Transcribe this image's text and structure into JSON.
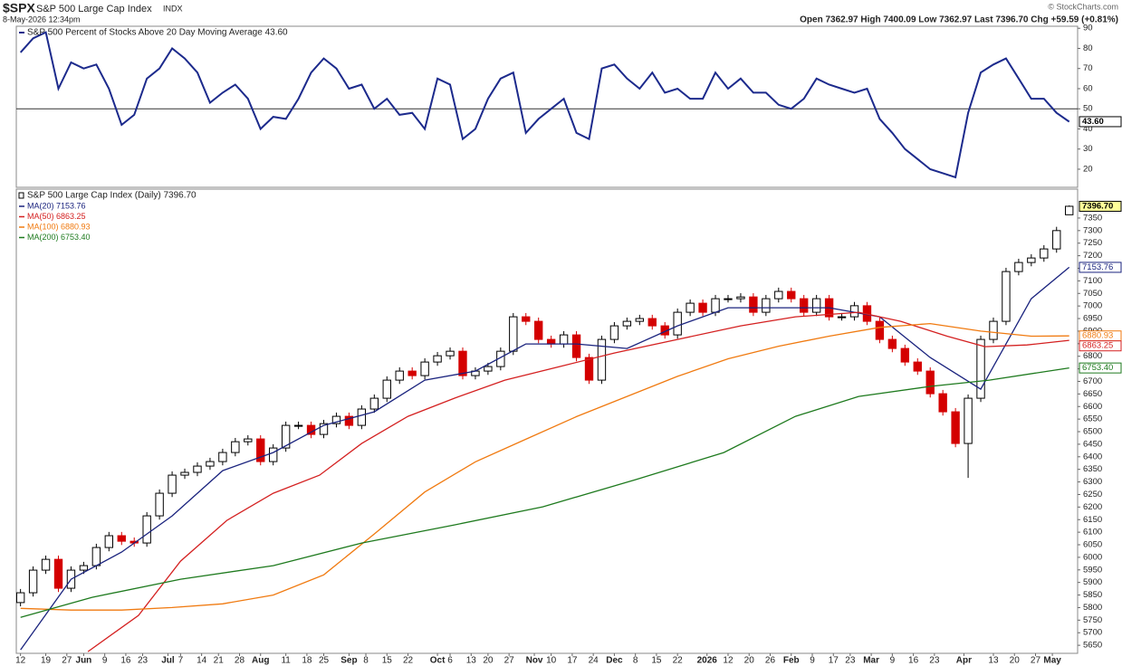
{
  "header": {
    "symbol": "$SPX",
    "name": "S&P 500 Large Cap Index",
    "exchange": "INDX",
    "timestamp": "8-May-2026 12:34pm",
    "quote": "Open 7362.97  High 7400.09  Low 7362.97  Last 7396.70  Chg +59.59 (+0.81%)",
    "credit": "© StockCharts.com"
  },
  "chart_data": [
    {
      "type": "line",
      "x": [
        0,
        3,
        6,
        9,
        12,
        15,
        18,
        21,
        24,
        27,
        30,
        33,
        36,
        39,
        42,
        45,
        48,
        51,
        54,
        57,
        60,
        63,
        66,
        69,
        72,
        75,
        78,
        81,
        84,
        87,
        90,
        93,
        96,
        99,
        102,
        105,
        108,
        111,
        114,
        117,
        120,
        123,
        126,
        129,
        132,
        135,
        138,
        141,
        144,
        147,
        150,
        153,
        156,
        159,
        162,
        165,
        168,
        171,
        174,
        177,
        180,
        183,
        186,
        189,
        192,
        195,
        198,
        201,
        204,
        207,
        210,
        213,
        216,
        219,
        222,
        225,
        228,
        231,
        234,
        237,
        240,
        243,
        246,
        249
      ],
      "series": [
        {
          "name": "S&P 500 Percent of Stocks Above 20 Day Moving Average 43.60",
          "color": "#1c2a8c",
          "last_label": "43.60",
          "values": [
            78,
            85,
            88,
            60,
            73,
            70,
            72,
            60,
            42,
            47,
            65,
            70,
            80,
            75,
            68,
            53,
            58,
            62,
            55,
            40,
            46,
            45,
            55,
            68,
            75,
            70,
            60,
            62,
            50,
            55,
            47,
            48,
            40,
            65,
            62,
            35,
            40,
            55,
            65,
            68,
            38,
            45,
            50,
            55,
            38,
            35,
            70,
            72,
            65,
            60,
            68,
            58,
            60,
            55,
            55,
            68,
            60,
            65,
            58,
            58,
            52,
            50,
            55,
            65,
            62,
            60,
            58,
            60,
            45,
            38,
            30,
            25,
            20,
            18,
            16,
            48,
            68,
            72,
            75,
            65,
            55,
            55,
            48,
            43.6
          ]
        }
      ],
      "xlim": [
        -1,
        251
      ],
      "ylim": [
        11,
        91
      ],
      "yticks": [
        20,
        30,
        40,
        50,
        60,
        70,
        80,
        90
      ],
      "hline": 50
    },
    {
      "type": "candlestick",
      "name": "S&P 500 Large Cap Index (Daily) 7396.70",
      "last_label": "7396.70",
      "up_color": "#000000",
      "down_color": "#d40000",
      "x": [
        0,
        3,
        6,
        9,
        12,
        15,
        18,
        21,
        24,
        27,
        30,
        33,
        36,
        39,
        42,
        45,
        48,
        51,
        54,
        57,
        60,
        63,
        66,
        69,
        72,
        75,
        78,
        81,
        84,
        87,
        90,
        93,
        96,
        99,
        102,
        105,
        108,
        111,
        114,
        117,
        120,
        123,
        126,
        129,
        132,
        135,
        138,
        141,
        144,
        147,
        150,
        153,
        156,
        159,
        162,
        165,
        168,
        171,
        174,
        177,
        180,
        183,
        186,
        189,
        192,
        195,
        198,
        201,
        204,
        207,
        210,
        213,
        216,
        219,
        222,
        225,
        228,
        231,
        234,
        237,
        240,
        243,
        246,
        249
      ],
      "open": [
        5820,
        5859,
        5949,
        5992,
        5877,
        5949,
        5967,
        6039,
        6086,
        6064,
        6057,
        6165,
        6255,
        6327,
        6338,
        6363,
        6381,
        6417,
        6460,
        6471,
        6381,
        6435,
        6525,
        6525,
        6489,
        6532,
        6561,
        6525,
        6590,
        6633,
        6705,
        6741,
        6723,
        6777,
        6802,
        6820,
        6723,
        6741,
        6759,
        6820,
        6957,
        6939,
        6867,
        6849,
        6885,
        6795,
        6705,
        6867,
        6921,
        6939,
        6950,
        6921,
        6885,
        6975,
        7011,
        6975,
        7029,
        7029,
        7036,
        6975,
        7029,
        7058,
        7029,
        6975,
        7029,
        6957,
        6957,
        7001,
        6939,
        6867,
        6831,
        6777,
        6741,
        6651,
        6579,
        6453,
        6633,
        6867,
        6939,
        7137,
        7173,
        7191,
        7227,
        7362.97
      ],
      "high": [
        5874,
        5964,
        6007,
        6007,
        5964,
        5982,
        6054,
        6101,
        6101,
        6079,
        6180,
        6270,
        6342,
        6353,
        6378,
        6396,
        6432,
        6475,
        6486,
        6486,
        6450,
        6540,
        6540,
        6540,
        6547,
        6576,
        6576,
        6605,
        6648,
        6720,
        6756,
        6756,
        6792,
        6817,
        6835,
        6835,
        6756,
        6774,
        6835,
        6972,
        6972,
        6954,
        6882,
        6900,
        6900,
        6810,
        6882,
        6936,
        6954,
        6965,
        6965,
        6936,
        6990,
        7026,
        7026,
        7044,
        7044,
        7051,
        7051,
        7044,
        7073,
        7073,
        7044,
        7044,
        7044,
        6972,
        7016,
        7016,
        6954,
        6882,
        6846,
        6792,
        6756,
        6666,
        6594,
        6648,
        6882,
        6954,
        7152,
        7188,
        7206,
        7242,
        7315,
        7400.09
      ],
      "low": [
        5805,
        5844,
        5934,
        5862,
        5862,
        5934,
        5952,
        6024,
        6049,
        6042,
        6042,
        6150,
        6240,
        6312,
        6323,
        6348,
        6366,
        6402,
        6445,
        6366,
        6366,
        6420,
        6510,
        6474,
        6474,
        6517,
        6510,
        6510,
        6575,
        6618,
        6690,
        6708,
        6708,
        6762,
        6787,
        6708,
        6708,
        6726,
        6744,
        6805,
        6924,
        6852,
        6834,
        6834,
        6780,
        6690,
        6690,
        6852,
        6906,
        6924,
        6906,
        6870,
        6870,
        6960,
        6960,
        6960,
        7014,
        7014,
        6960,
        6960,
        7014,
        7014,
        6960,
        6960,
        6942,
        6942,
        6942,
        6924,
        6852,
        6816,
        6762,
        6726,
        6636,
        6564,
        6438,
        6316,
        6618,
        6852,
        6924,
        7122,
        7158,
        7176,
        7212,
        7362.97
      ],
      "close": [
        5859,
        5949,
        5992,
        5877,
        5949,
        5967,
        6039,
        6086,
        6064,
        6057,
        6165,
        6255,
        6327,
        6338,
        6363,
        6381,
        6417,
        6460,
        6471,
        6381,
        6435,
        6525,
        6525,
        6489,
        6532,
        6561,
        6525,
        6590,
        6633,
        6705,
        6741,
        6723,
        6777,
        6802,
        6820,
        6723,
        6741,
        6759,
        6820,
        6957,
        6939,
        6867,
        6849,
        6885,
        6795,
        6705,
        6867,
        6921,
        6939,
        6950,
        6921,
        6885,
        6975,
        7011,
        6975,
        7029,
        7029,
        7036,
        6975,
        7029,
        7058,
        7029,
        6975,
        7029,
        6957,
        6957,
        7001,
        6939,
        6867,
        6831,
        6777,
        6741,
        6651,
        6579,
        6453,
        6633,
        6867,
        6939,
        7137,
        7173,
        7191,
        7227,
        7300,
        7396.7
      ],
      "overlays": [
        {
          "name": "MA(20) 7153.76",
          "color": "#1a237e",
          "last_label": "7153.76",
          "x": [
            0,
            12,
            24,
            36,
            48,
            60,
            72,
            84,
            96,
            108,
            120,
            132,
            144,
            156,
            168,
            180,
            192,
            204,
            216,
            228,
            240,
            249
          ],
          "values": [
            5632,
            5913,
            6021,
            6165,
            6345,
            6417,
            6525,
            6579,
            6705,
            6741,
            6849,
            6849,
            6831,
            6921,
            6993,
            6993,
            6993,
            6957,
            6795,
            6669,
            7029,
            7153.76
          ]
        },
        {
          "name": "MA(50) 6863.25",
          "color": "#d42020",
          "last_label": "6863.25",
          "x": [
            16,
            28,
            38,
            49,
            60,
            71,
            81,
            92,
            103,
            115,
            128,
            141,
            156,
            171,
            184,
            199,
            209,
            220,
            229,
            239,
            249
          ],
          "values": [
            5625,
            5769,
            5985,
            6147,
            6255,
            6327,
            6453,
            6561,
            6633,
            6705,
            6759,
            6813,
            6867,
            6921,
            6957,
            6975,
            6939,
            6880,
            6838,
            6845,
            6863.25
          ]
        },
        {
          "name": "MA(100) 6880.93",
          "color": "#f07a10",
          "last_label": "6880.93",
          "x": [
            0,
            12,
            24,
            36,
            48,
            60,
            72,
            84,
            96,
            108,
            120,
            132,
            144,
            156,
            168,
            180,
            192,
            204,
            216,
            228,
            240,
            249
          ],
          "values": [
            5797,
            5790,
            5790,
            5800,
            5815,
            5850,
            5930,
            6093,
            6260,
            6380,
            6470,
            6560,
            6640,
            6720,
            6790,
            6840,
            6880,
            6915,
            6930,
            6900,
            6880,
            6880.93
          ]
        },
        {
          "name": "MA(200) 6753.40",
          "color": "#1e7a1e",
          "last_label": "6753.40",
          "x": [
            0,
            17,
            38,
            60,
            81,
            103,
            124,
            146,
            167,
            184,
            199,
            216,
            230,
            249
          ],
          "values": [
            5761,
            5841,
            5913,
            5967,
            6057,
            6129,
            6201,
            6309,
            6417,
            6561,
            6640,
            6680,
            6705,
            6753.4
          ]
        }
      ],
      "xlim": [
        -1,
        251
      ],
      "ylim": [
        5618,
        7465
      ],
      "yticks": [
        5650,
        5700,
        5750,
        5800,
        5850,
        5900,
        5950,
        6000,
        6050,
        6100,
        6150,
        6200,
        6250,
        6300,
        6350,
        6400,
        6450,
        6500,
        6550,
        6600,
        6650,
        6700,
        6750,
        6800,
        6850,
        6900,
        6950,
        7000,
        7050,
        7100,
        7150,
        7200,
        7250,
        7300,
        7350
      ],
      "xticks": [
        {
          "value": 0,
          "label": "12"
        },
        {
          "value": 6,
          "label": "19"
        },
        {
          "value": 11,
          "label": "27"
        },
        {
          "value": 15,
          "label": "Jun"
        },
        {
          "value": 20,
          "label": "9"
        },
        {
          "value": 25,
          "label": "16"
        },
        {
          "value": 29,
          "label": "23"
        },
        {
          "value": 35,
          "label": "Jul"
        },
        {
          "value": 38,
          "label": "7"
        },
        {
          "value": 43,
          "label": "14"
        },
        {
          "value": 47,
          "label": "21"
        },
        {
          "value": 52,
          "label": "28"
        },
        {
          "value": 57,
          "label": "Aug"
        },
        {
          "value": 63,
          "label": "11"
        },
        {
          "value": 68,
          "label": "18"
        },
        {
          "value": 72,
          "label": "25"
        },
        {
          "value": 78,
          "label": "Sep"
        },
        {
          "value": 82,
          "label": "8"
        },
        {
          "value": 87,
          "label": "15"
        },
        {
          "value": 92,
          "label": "22"
        },
        {
          "value": 99,
          "label": "Oct"
        },
        {
          "value": 102,
          "label": "6"
        },
        {
          "value": 107,
          "label": "13"
        },
        {
          "value": 111,
          "label": "20"
        },
        {
          "value": 116,
          "label": "27"
        },
        {
          "value": 122,
          "label": "Nov"
        },
        {
          "value": 126,
          "label": "10"
        },
        {
          "value": 131,
          "label": "17"
        },
        {
          "value": 136,
          "label": "24"
        },
        {
          "value": 141,
          "label": "Dec"
        },
        {
          "value": 146,
          "label": "8"
        },
        {
          "value": 151,
          "label": "15"
        },
        {
          "value": 156,
          "label": "22"
        },
        {
          "value": 163,
          "label": "2026"
        },
        {
          "value": 168,
          "label": "12"
        },
        {
          "value": 173,
          "label": "20"
        },
        {
          "value": 178,
          "label": "26"
        },
        {
          "value": 183,
          "label": "Feb"
        },
        {
          "value": 188,
          "label": "9"
        },
        {
          "value": 193,
          "label": "17"
        },
        {
          "value": 197,
          "label": "23"
        },
        {
          "value": 202,
          "label": "Mar"
        },
        {
          "value": 207,
          "label": "9"
        },
        {
          "value": 212,
          "label": "16"
        },
        {
          "value": 217,
          "label": "23"
        },
        {
          "value": 224,
          "label": "Apr"
        },
        {
          "value": 231,
          "label": "13"
        },
        {
          "value": 236,
          "label": "20"
        },
        {
          "value": 241,
          "label": "27"
        },
        {
          "value": 245,
          "label": "May"
        }
      ]
    }
  ]
}
